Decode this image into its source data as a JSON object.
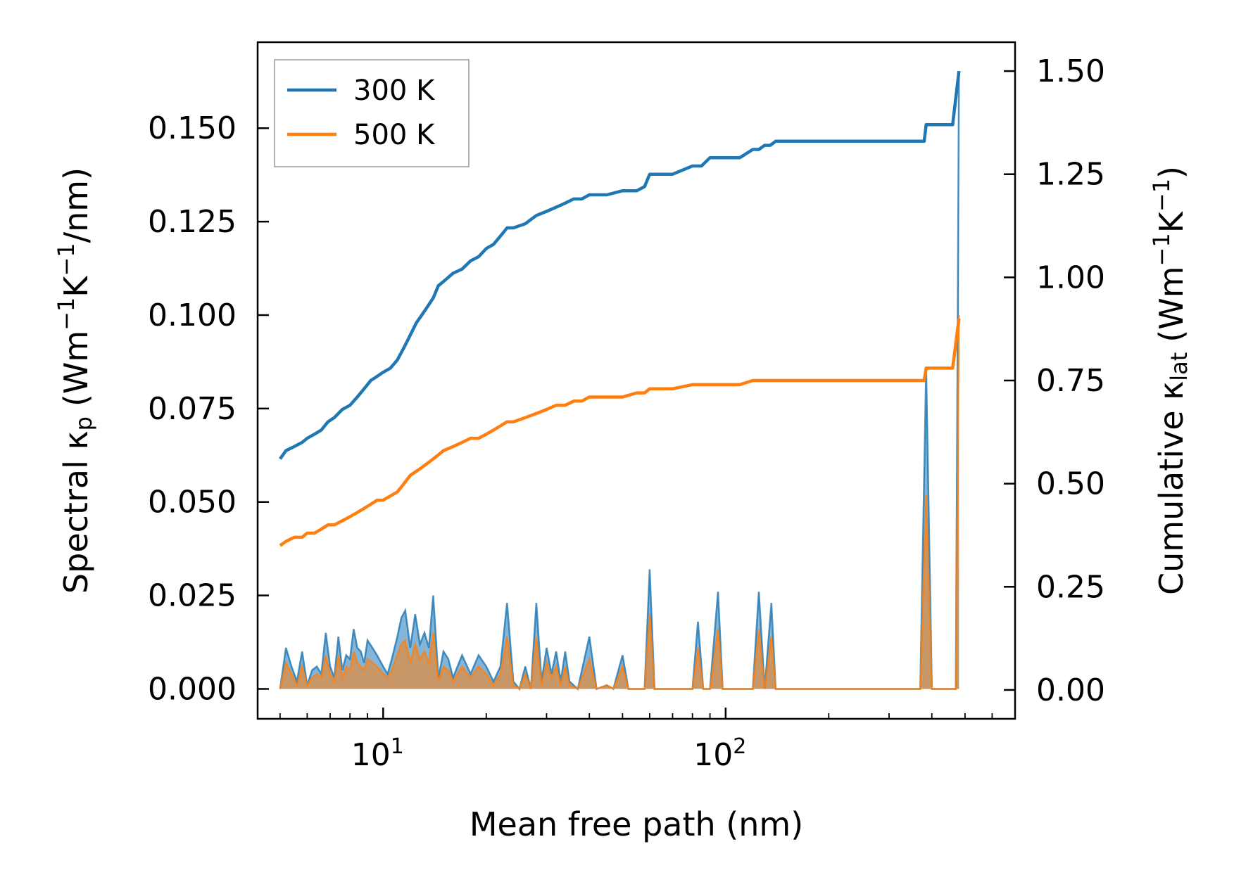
{
  "chart_data": {
    "type": "line",
    "xlabel": "Mean free path (nm)",
    "ylabel_left": {
      "main": "Spectral κ",
      "sub": "p",
      "unit": "(Wm",
      "sup1": "−1",
      "mid": "K",
      "sup2": "−1",
      "tail": "/nm)"
    },
    "ylabel_right": {
      "main": "Cumulative κ",
      "sub": "lat",
      "unit": "(Wm",
      "sup1": "−1",
      "mid": "K",
      "sup2": "−1",
      "tail": ")"
    },
    "x_scale": "log",
    "xlim": [
      4.3,
      700
    ],
    "x_ticks": [
      {
        "value": 10,
        "base": "10",
        "exp": "1"
      },
      {
        "value": 100,
        "base": "10",
        "exp": "2"
      }
    ],
    "ylim_left": [
      -0.008,
      0.173
    ],
    "ylim_right": [
      -0.07,
      1.57
    ],
    "y_ticks_left": [
      0.0,
      0.025,
      0.05,
      0.075,
      0.1,
      0.125,
      0.15
    ],
    "y_ticks_left_labels": [
      "0.000",
      "0.025",
      "0.050",
      "0.075",
      "0.100",
      "0.125",
      "0.150"
    ],
    "y_ticks_right": [
      0.0,
      0.25,
      0.5,
      0.75,
      1.0,
      1.25,
      1.5
    ],
    "y_ticks_right_labels": [
      "0.00",
      "0.25",
      "0.50",
      "0.75",
      "1.00",
      "1.25",
      "1.50"
    ],
    "legend": {
      "position": "top-left",
      "entries": [
        "300 K",
        "500 K"
      ]
    },
    "colors": {
      "300 K": "#1f77b4",
      "500 K": "#ff7f0e"
    },
    "series": [
      {
        "name": "300 K",
        "axis": "right",
        "kind": "cumulative",
        "x": [
          5.0,
          5.2,
          5.5,
          5.8,
          6.0,
          6.3,
          6.6,
          6.9,
          7.2,
          7.6,
          8.0,
          8.4,
          8.8,
          9.2,
          9.6,
          10.0,
          10.5,
          11.0,
          11.5,
          12.0,
          12.5,
          13.0,
          13.5,
          14.0,
          14.5,
          15.0,
          16.0,
          17.0,
          18.0,
          19.0,
          20.0,
          21.0,
          22.0,
          23.0,
          24.0,
          26.0,
          28.0,
          30.0,
          32.0,
          34.0,
          36.0,
          38.0,
          40.0,
          45.0,
          50.0,
          55.0,
          58.0,
          60.0,
          65.0,
          70.0,
          80.0,
          85.0,
          90.0,
          95.0,
          100.0,
          110.0,
          120.0,
          125.0,
          130.0,
          135.0,
          140.0,
          200.0,
          300.0,
          380.0,
          385.0,
          450.0,
          460.0,
          480.0
        ],
        "y": [
          0.56,
          0.58,
          0.59,
          0.6,
          0.61,
          0.62,
          0.63,
          0.65,
          0.66,
          0.68,
          0.69,
          0.71,
          0.73,
          0.75,
          0.76,
          0.77,
          0.78,
          0.8,
          0.83,
          0.86,
          0.89,
          0.91,
          0.93,
          0.95,
          0.98,
          0.99,
          1.01,
          1.02,
          1.04,
          1.05,
          1.07,
          1.08,
          1.1,
          1.12,
          1.12,
          1.13,
          1.15,
          1.16,
          1.17,
          1.18,
          1.19,
          1.19,
          1.2,
          1.2,
          1.21,
          1.21,
          1.22,
          1.25,
          1.25,
          1.25,
          1.27,
          1.27,
          1.29,
          1.29,
          1.29,
          1.29,
          1.31,
          1.31,
          1.32,
          1.32,
          1.33,
          1.33,
          1.33,
          1.33,
          1.37,
          1.37,
          1.37,
          1.5
        ]
      },
      {
        "name": "500 K",
        "axis": "right",
        "kind": "cumulative",
        "x": [
          5.0,
          5.2,
          5.5,
          5.8,
          6.0,
          6.3,
          6.6,
          6.9,
          7.2,
          7.6,
          8.0,
          8.4,
          8.8,
          9.2,
          9.6,
          10.0,
          10.5,
          11.0,
          11.5,
          12.0,
          12.5,
          13.0,
          13.5,
          14.0,
          14.5,
          15.0,
          16.0,
          17.0,
          18.0,
          19.0,
          20.0,
          21.0,
          22.0,
          23.0,
          24.0,
          26.0,
          28.0,
          30.0,
          32.0,
          34.0,
          36.0,
          38.0,
          40.0,
          45.0,
          50.0,
          55.0,
          58.0,
          60.0,
          65.0,
          70.0,
          80.0,
          85.0,
          90.0,
          95.0,
          100.0,
          110.0,
          120.0,
          125.0,
          130.0,
          135.0,
          140.0,
          200.0,
          300.0,
          380.0,
          385.0,
          450.0,
          460.0,
          480.0
        ],
        "y": [
          0.35,
          0.36,
          0.37,
          0.37,
          0.38,
          0.38,
          0.39,
          0.4,
          0.4,
          0.41,
          0.42,
          0.43,
          0.44,
          0.45,
          0.46,
          0.46,
          0.47,
          0.48,
          0.5,
          0.52,
          0.53,
          0.54,
          0.55,
          0.56,
          0.57,
          0.58,
          0.59,
          0.6,
          0.61,
          0.61,
          0.62,
          0.63,
          0.64,
          0.65,
          0.65,
          0.66,
          0.67,
          0.68,
          0.69,
          0.69,
          0.7,
          0.7,
          0.71,
          0.71,
          0.71,
          0.72,
          0.72,
          0.73,
          0.73,
          0.73,
          0.74,
          0.74,
          0.74,
          0.74,
          0.74,
          0.74,
          0.75,
          0.75,
          0.75,
          0.75,
          0.75,
          0.75,
          0.75,
          0.75,
          0.78,
          0.78,
          0.78,
          0.9
        ]
      },
      {
        "name": "300 K",
        "axis": "left",
        "kind": "spectral",
        "x": [
          5.0,
          5.2,
          5.4,
          5.6,
          5.8,
          6.0,
          6.2,
          6.4,
          6.6,
          6.8,
          7.0,
          7.2,
          7.4,
          7.6,
          7.8,
          8.0,
          8.2,
          8.4,
          8.6,
          8.8,
          9.0,
          9.3,
          9.6,
          10.0,
          10.3,
          10.6,
          11.0,
          11.3,
          11.6,
          12.0,
          12.4,
          12.8,
          13.2,
          13.6,
          14.0,
          14.5,
          15.0,
          15.5,
          16.0,
          17.0,
          18.0,
          19.0,
          20.0,
          21.0,
          22.0,
          23.0,
          24.0,
          25.0,
          26.0,
          27.0,
          28.0,
          29.0,
          30.0,
          31.0,
          32.0,
          33.0,
          34.0,
          35.0,
          37.0,
          40.0,
          42.0,
          45.0,
          47.0,
          50.0,
          52.0,
          55.0,
          58.0,
          60.0,
          62.0,
          66.0,
          70.0,
          80.0,
          83.0,
          86.0,
          90.0,
          95.0,
          98.0,
          110.0,
          120.0,
          125.0,
          130.0,
          136.0,
          140.0,
          200.0,
          300.0,
          370.0,
          385.0,
          400.0,
          450.0,
          470.0,
          480.0
        ],
        "y": [
          0.0,
          0.011,
          0.006,
          0.002,
          0.01,
          0.001,
          0.005,
          0.006,
          0.004,
          0.015,
          0.006,
          0.003,
          0.014,
          0.005,
          0.009,
          0.008,
          0.016,
          0.011,
          0.01,
          0.007,
          0.013,
          0.011,
          0.009,
          0.006,
          0.004,
          0.008,
          0.014,
          0.019,
          0.021,
          0.011,
          0.02,
          0.012,
          0.015,
          0.011,
          0.025,
          0.003,
          0.01,
          0.008,
          0.003,
          0.009,
          0.004,
          0.009,
          0.006,
          0.002,
          0.006,
          0.023,
          0.002,
          0.0,
          0.006,
          0.0,
          0.023,
          0.002,
          0.011,
          0.004,
          0.01,
          0.002,
          0.01,
          0.002,
          0.0,
          0.014,
          0.0,
          0.001,
          0.0,
          0.009,
          0.0,
          0.0,
          0.0,
          0.032,
          0.0,
          0.0,
          0.0,
          0.0,
          0.018,
          0.0,
          0.0,
          0.026,
          0.0,
          0.0,
          0.0,
          0.026,
          0.0,
          0.023,
          0.0,
          0.0,
          0.0,
          0.0,
          0.086,
          0.0,
          0.0,
          0.0,
          0.165
        ]
      },
      {
        "name": "500 K",
        "axis": "left",
        "kind": "spectral",
        "x": [
          5.0,
          5.2,
          5.4,
          5.6,
          5.8,
          6.0,
          6.2,
          6.4,
          6.6,
          6.8,
          7.0,
          7.2,
          7.4,
          7.6,
          7.8,
          8.0,
          8.2,
          8.4,
          8.6,
          8.8,
          9.0,
          9.3,
          9.6,
          10.0,
          10.3,
          10.6,
          11.0,
          11.3,
          11.6,
          12.0,
          12.4,
          12.8,
          13.2,
          13.6,
          14.0,
          14.5,
          15.0,
          15.5,
          16.0,
          17.0,
          18.0,
          19.0,
          20.0,
          21.0,
          22.0,
          23.0,
          24.0,
          25.0,
          26.0,
          27.0,
          28.0,
          29.0,
          30.0,
          31.0,
          32.0,
          33.0,
          34.0,
          35.0,
          37.0,
          40.0,
          42.0,
          45.0,
          47.0,
          50.0,
          52.0,
          55.0,
          58.0,
          60.0,
          62.0,
          66.0,
          70.0,
          80.0,
          83.0,
          86.0,
          90.0,
          95.0,
          98.0,
          110.0,
          120.0,
          125.0,
          130.0,
          136.0,
          140.0,
          200.0,
          300.0,
          370.0,
          385.0,
          400.0,
          450.0,
          470.0,
          480.0
        ],
        "y": [
          0.0,
          0.007,
          0.004,
          0.001,
          0.006,
          0.001,
          0.003,
          0.004,
          0.003,
          0.009,
          0.004,
          0.002,
          0.009,
          0.003,
          0.006,
          0.005,
          0.01,
          0.007,
          0.006,
          0.005,
          0.008,
          0.007,
          0.006,
          0.004,
          0.003,
          0.005,
          0.009,
          0.012,
          0.013,
          0.007,
          0.012,
          0.008,
          0.01,
          0.007,
          0.015,
          0.002,
          0.006,
          0.005,
          0.002,
          0.006,
          0.003,
          0.006,
          0.004,
          0.001,
          0.004,
          0.014,
          0.001,
          0.0,
          0.004,
          0.0,
          0.014,
          0.001,
          0.007,
          0.003,
          0.006,
          0.001,
          0.006,
          0.001,
          0.0,
          0.008,
          0.0,
          0.001,
          0.0,
          0.006,
          0.0,
          0.0,
          0.0,
          0.02,
          0.0,
          0.0,
          0.0,
          0.0,
          0.011,
          0.0,
          0.0,
          0.016,
          0.0,
          0.0,
          0.0,
          0.016,
          0.0,
          0.014,
          0.0,
          0.0,
          0.0,
          0.0,
          0.052,
          0.0,
          0.0,
          0.0,
          0.1
        ]
      }
    ]
  }
}
